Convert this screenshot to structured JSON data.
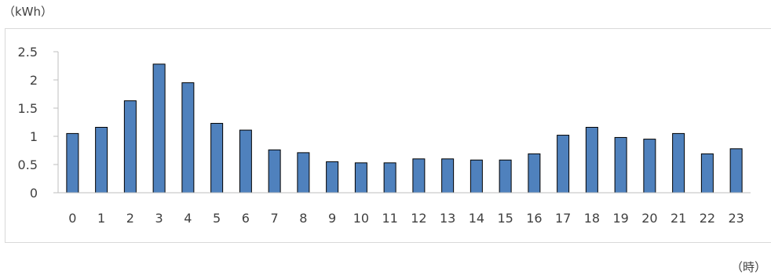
{
  "units": {
    "y": "（kWh）",
    "x": "（時）"
  },
  "colors": {
    "bar_fill": "#4f81bd",
    "bar_stroke": "#000000",
    "axis": "#bfbfbf",
    "frame": "#d9d9d9"
  },
  "chart_data": {
    "type": "bar",
    "title": "",
    "xlabel": "（時）",
    "ylabel": "（kWh）",
    "categories": [
      "0",
      "1",
      "2",
      "3",
      "4",
      "5",
      "6",
      "7",
      "8",
      "9",
      "10",
      "11",
      "12",
      "13",
      "14",
      "15",
      "16",
      "17",
      "18",
      "19",
      "20",
      "21",
      "22",
      "23"
    ],
    "values": [
      1.05,
      1.16,
      1.63,
      2.28,
      1.95,
      1.23,
      1.11,
      0.76,
      0.71,
      0.55,
      0.53,
      0.53,
      0.6,
      0.6,
      0.58,
      0.58,
      0.69,
      1.02,
      1.16,
      0.98,
      0.95,
      1.05,
      0.69,
      0.78
    ],
    "ylim": [
      0,
      2.5
    ],
    "yticks": [
      "0",
      "0.5",
      "1",
      "1.5",
      "2",
      "2.5"
    ],
    "grid": false,
    "legend": "none"
  }
}
